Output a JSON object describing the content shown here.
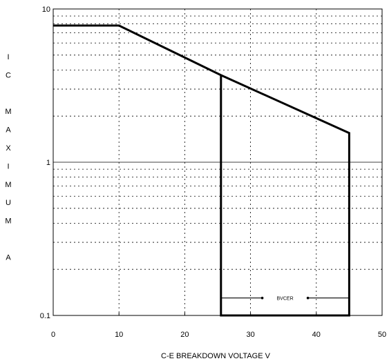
{
  "chart_data": {
    "type": "line",
    "title": "",
    "xlabel": "C-E BREAKDOWN VOLTAGE  V",
    "ylabel_letters": [
      "I",
      "C",
      "",
      "M",
      "A",
      "X",
      "I",
      "M",
      "U",
      "M",
      "",
      "A"
    ],
    "xlim": [
      0,
      50
    ],
    "ylim": [
      0.1,
      10
    ],
    "yscale": "log",
    "x_ticks": [
      0,
      10,
      20,
      30,
      40,
      50
    ],
    "x_tick_labels": [
      "0",
      "10",
      "20",
      "30",
      "40",
      "50"
    ],
    "y_tick_labels": [
      {
        "value": 10,
        "label": "10"
      },
      {
        "value": 1,
        "label": "1"
      },
      {
        "value": 0.1,
        "label": "0.1"
      }
    ],
    "grid": true,
    "series": [
      {
        "x": [
          0,
          10,
          25.5,
          45,
          45,
          25.5,
          25.5
        ],
        "y": [
          7.8,
          7.8,
          3.7,
          1.55,
          0.1,
          0.1,
          3.7
        ]
      }
    ],
    "annotation": {
      "text": "BVCER",
      "x_from": 25.5,
      "x_to": 45,
      "y": 0.13
    },
    "colors": {
      "line": "#000000",
      "grid": "#000000",
      "background": "#ffffff"
    }
  }
}
